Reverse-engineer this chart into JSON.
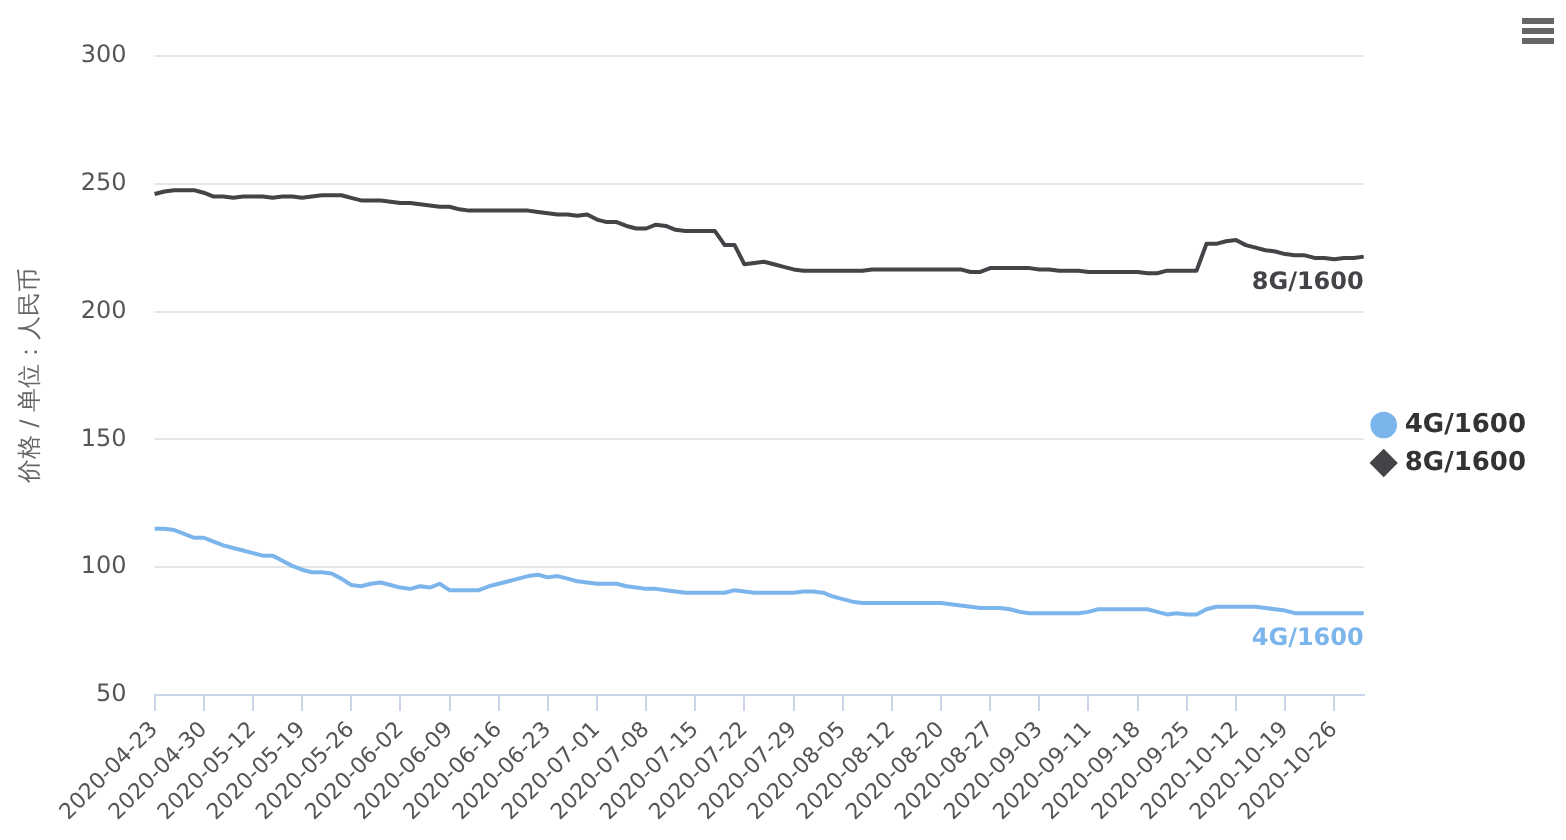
{
  "chart_data": {
    "type": "line",
    "ylabel": "价格 / 单位：人民币",
    "categories": [
      "2020-04-23",
      null,
      null,
      null,
      null,
      "2020-04-30",
      null,
      null,
      null,
      null,
      "2020-05-12",
      null,
      null,
      null,
      null,
      "2020-05-19",
      null,
      null,
      null,
      null,
      "2020-05-26",
      null,
      null,
      null,
      null,
      "2020-06-02",
      null,
      null,
      null,
      null,
      "2020-06-09",
      null,
      null,
      null,
      null,
      "2020-06-16",
      null,
      null,
      null,
      null,
      "2020-06-23",
      null,
      null,
      null,
      null,
      "2020-07-01",
      null,
      null,
      null,
      null,
      "2020-07-08",
      null,
      null,
      null,
      null,
      "2020-07-15",
      null,
      null,
      null,
      null,
      "2020-07-22",
      null,
      null,
      null,
      null,
      "2020-07-29",
      null,
      null,
      null,
      null,
      "2020-08-05",
      null,
      null,
      null,
      null,
      "2020-08-12",
      null,
      null,
      null,
      null,
      "2020-08-20",
      null,
      null,
      null,
      null,
      "2020-08-27",
      null,
      null,
      null,
      null,
      "2020-09-03",
      null,
      null,
      null,
      null,
      "2020-09-11",
      null,
      null,
      null,
      null,
      "2020-09-18",
      null,
      null,
      null,
      null,
      "2020-09-25",
      null,
      null,
      null,
      null,
      "2020-10-12",
      null,
      null,
      null,
      null,
      "2020-10-19",
      null,
      null,
      null,
      null,
      "2020-10-26",
      null,
      null,
      null
    ],
    "series": [
      {
        "name": "4G/1600",
        "color": "#7cb5ec",
        "values": [
          115,
          115,
          114.5,
          113,
          111.5,
          111.5,
          110,
          108.5,
          107.5,
          106.5,
          105.5,
          104.5,
          104.5,
          102.5,
          100.5,
          99,
          98,
          98,
          97.5,
          95.5,
          93,
          92.5,
          93.5,
          94,
          93,
          92,
          91.5,
          92.5,
          92,
          93.5,
          91,
          91,
          91,
          91,
          92.5,
          93.5,
          94.5,
          95.5,
          96.5,
          97,
          96,
          96.5,
          95.5,
          94.5,
          94,
          93.5,
          93.5,
          93.5,
          92.5,
          92,
          91.5,
          91.5,
          91,
          90.5,
          90,
          90,
          90,
          90,
          90,
          91,
          90.5,
          90,
          90,
          90,
          90,
          90,
          90.5,
          90.5,
          90,
          88.5,
          87.5,
          86.5,
          86,
          86,
          86,
          86,
          86,
          86,
          86,
          86,
          86,
          85.5,
          85,
          84.5,
          84,
          84,
          84,
          83.5,
          82.5,
          82,
          82,
          82,
          82,
          82,
          82,
          82.5,
          83.5,
          83.5,
          83.5,
          83.5,
          83.5,
          83.5,
          82.5,
          81.5,
          82,
          81.5,
          81.5,
          83.5,
          84.5,
          84.5,
          84.5,
          84.5,
          84.5,
          84,
          83.5,
          83,
          82,
          82,
          82,
          82,
          82,
          82,
          82,
          82
        ]
      },
      {
        "name": "8G/1600",
        "color": "#434348",
        "values": [
          246,
          247,
          247.5,
          247.5,
          247.5,
          246.5,
          245,
          245,
          244.5,
          245,
          245,
          245,
          244.5,
          245,
          245,
          244.5,
          245,
          245.5,
          245.5,
          245.5,
          244.5,
          243.5,
          243.5,
          243.5,
          243,
          242.5,
          242.5,
          242,
          241.5,
          241,
          241,
          240,
          239.5,
          239.5,
          239.5,
          239.5,
          239.5,
          239.5,
          239.5,
          239,
          238.5,
          238,
          238,
          237.5,
          238,
          236,
          235,
          235,
          233.5,
          232.5,
          232.5,
          234,
          233.5,
          232,
          231.5,
          231.5,
          231.5,
          231.5,
          226,
          226,
          218.5,
          219,
          219.5,
          218.5,
          217.5,
          216.5,
          216,
          216,
          216,
          216,
          216,
          216,
          216,
          216.5,
          216.5,
          216.5,
          216.5,
          216.5,
          216.5,
          216.5,
          216.5,
          216.5,
          216.5,
          215.5,
          215.5,
          217,
          217,
          217,
          217,
          217,
          216.5,
          216.5,
          216,
          216,
          216,
          215.5,
          215.5,
          215.5,
          215.5,
          215.5,
          215.5,
          215,
          215,
          216,
          216,
          216,
          216,
          226.5,
          226.5,
          227.5,
          228,
          226,
          225,
          224,
          223.5,
          222.5,
          222,
          222,
          221,
          221,
          220.5,
          221,
          221,
          221.5
        ]
      }
    ],
    "ylim": [
      50,
      300
    ],
    "yticks": [
      50,
      100,
      150,
      200,
      250,
      300
    ],
    "grid": "y",
    "legend": "right",
    "marker": "none",
    "line_style": "solid"
  }
}
